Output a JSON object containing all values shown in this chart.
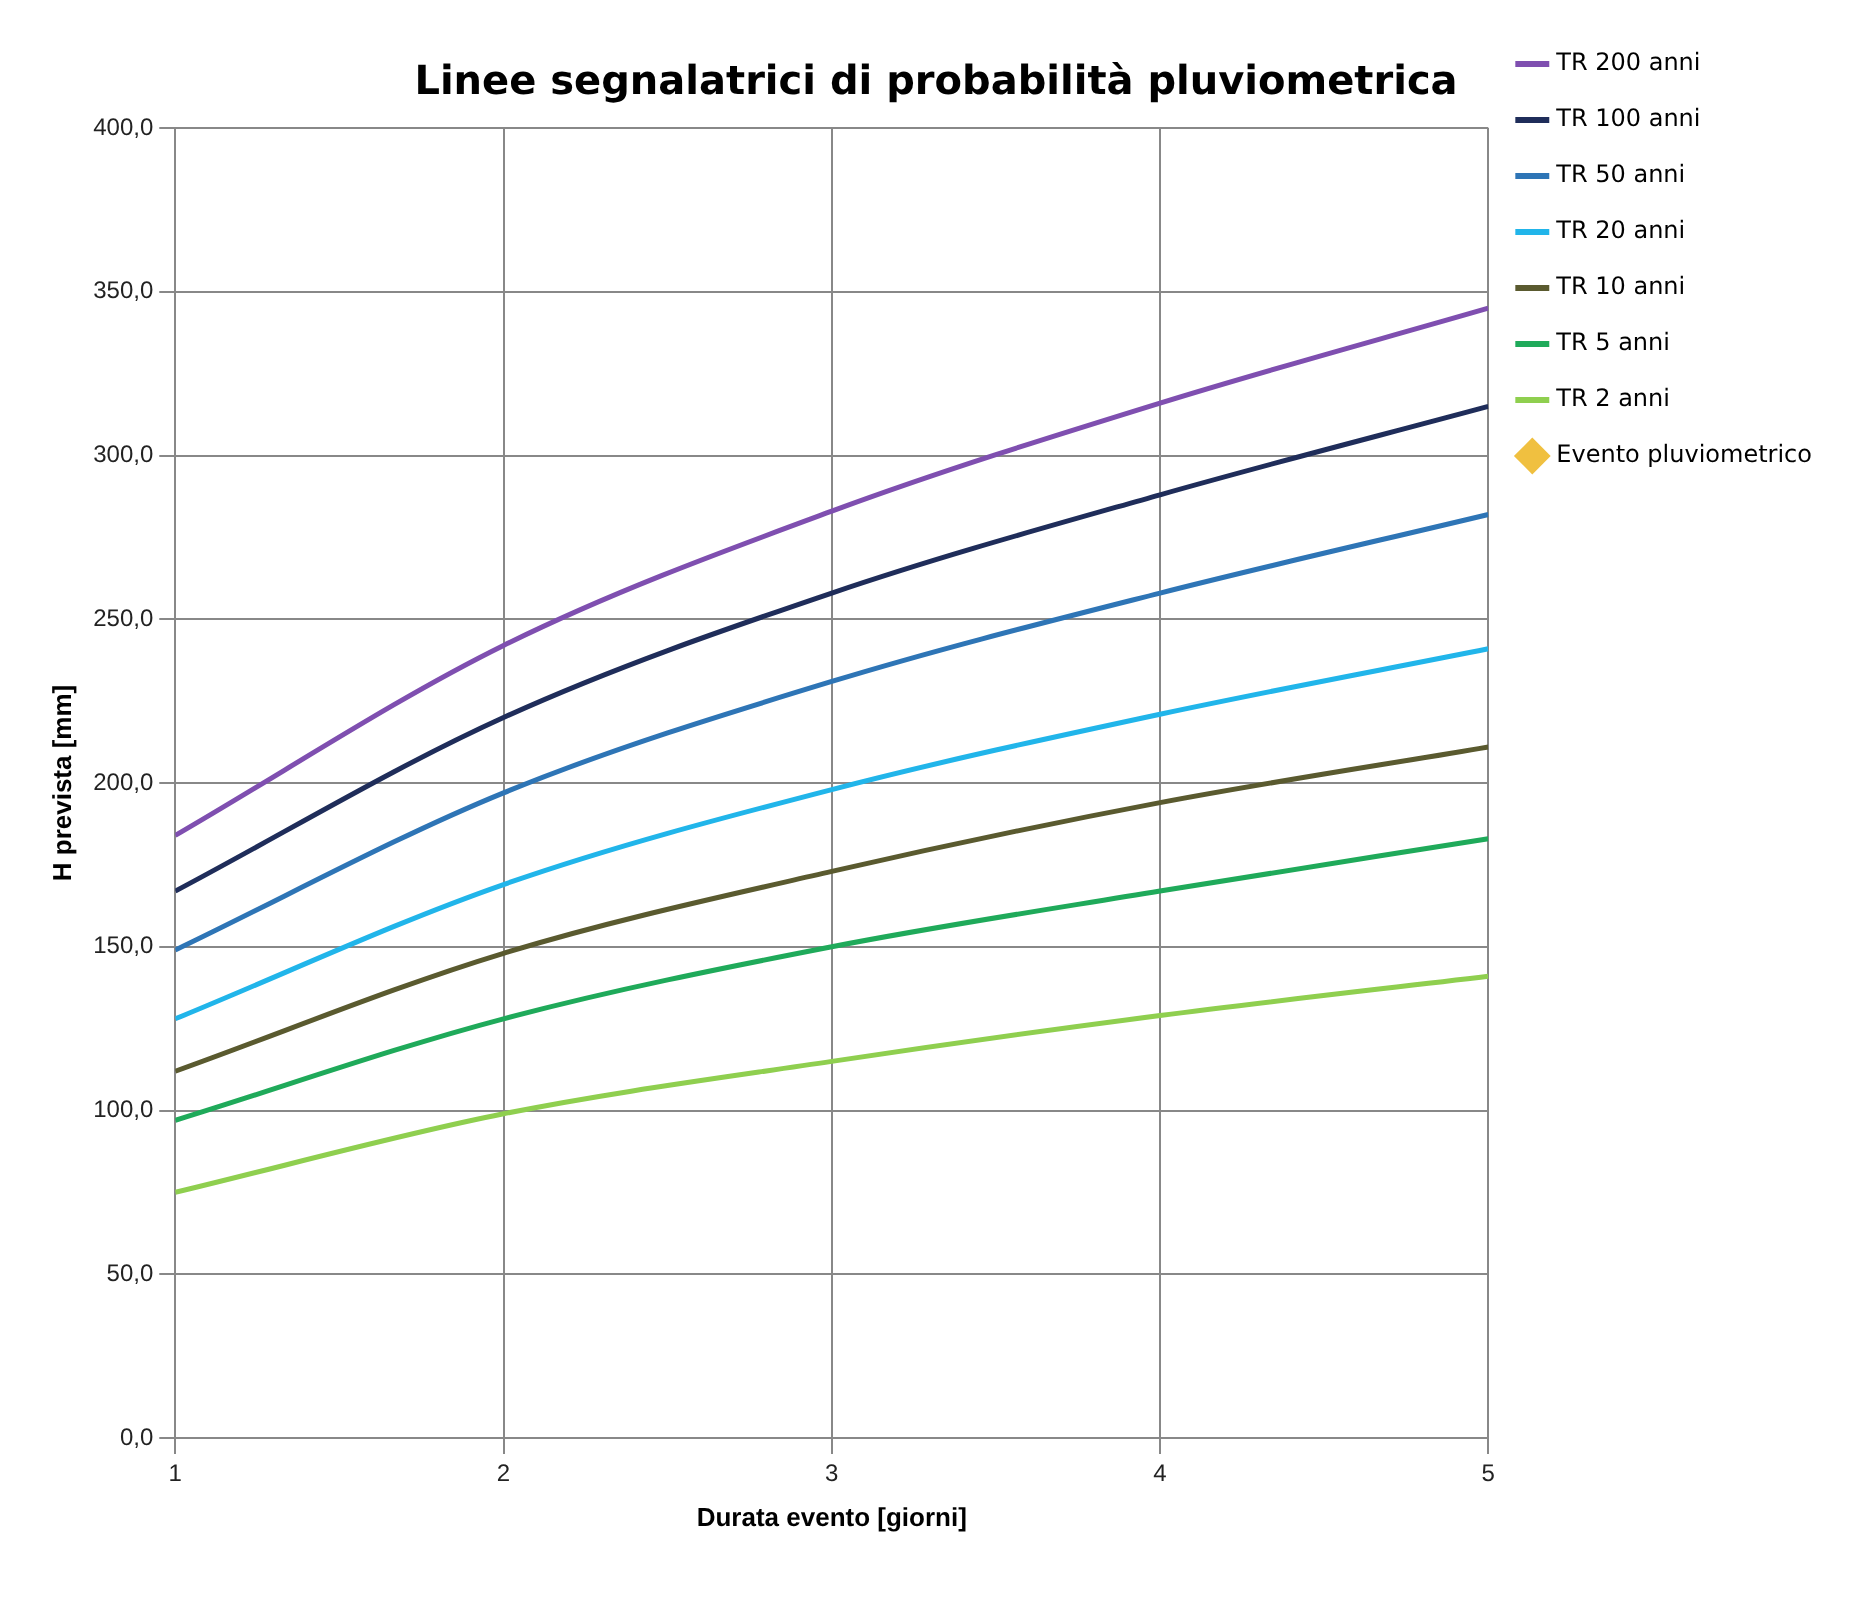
{
  "chart_data": {
    "type": "line",
    "title": "Linee segnalatrici di probabilità pluviometrica",
    "xlabel": "Durata evento [giorni]",
    "ylabel": "H prevista [mm]",
    "x": [
      1,
      2,
      3,
      4,
      5
    ],
    "series": [
      {
        "name": "TR 200 anni",
        "color": "#7f4fb0",
        "values": [
          184,
          242,
          283,
          316,
          345
        ]
      },
      {
        "name": "TR 100 anni",
        "color": "#1f2d5a",
        "values": [
          167,
          220,
          258,
          288,
          315
        ]
      },
      {
        "name": "TR 50 anni",
        "color": "#2e75b6",
        "values": [
          149,
          197,
          231,
          258,
          282
        ]
      },
      {
        "name": "TR 20 anni",
        "color": "#21b5ea",
        "values": [
          128,
          169,
          198,
          221,
          241
        ]
      },
      {
        "name": "TR 10 anni",
        "color": "#5a5a2f",
        "values": [
          112,
          148,
          173,
          194,
          211
        ]
      },
      {
        "name": "TR 5 anni",
        "color": "#1faa5a",
        "values": [
          97,
          128,
          150,
          167,
          183
        ]
      },
      {
        "name": "TR 2 anni",
        "color": "#8fcf4f",
        "values": [
          75,
          99,
          115,
          129,
          141
        ]
      },
      {
        "name": "Evento pluviometrico",
        "type": "scatter",
        "marker": "diamond",
        "color": "#f0c040",
        "values": [
          null,
          null,
          null,
          null,
          null
        ]
      }
    ],
    "xlim": [
      1,
      5
    ],
    "xticks": [
      1,
      2,
      3,
      4,
      5
    ],
    "ylim": [
      0,
      400
    ],
    "yticks": [
      {
        "value": 0,
        "label": "0,0"
      },
      {
        "value": 50,
        "label": "50,0"
      },
      {
        "value": 100,
        "label": "100,0"
      },
      {
        "value": 150,
        "label": "150,0"
      },
      {
        "value": 200,
        "label": "200,0"
      },
      {
        "value": 250,
        "label": "250,0"
      },
      {
        "value": 300,
        "label": "300,0"
      },
      {
        "value": 350,
        "label": "350,0"
      },
      {
        "value": 400,
        "label": "400,0"
      }
    ],
    "grid": true,
    "legend": "right",
    "marker": "none",
    "line_style": "solid"
  }
}
